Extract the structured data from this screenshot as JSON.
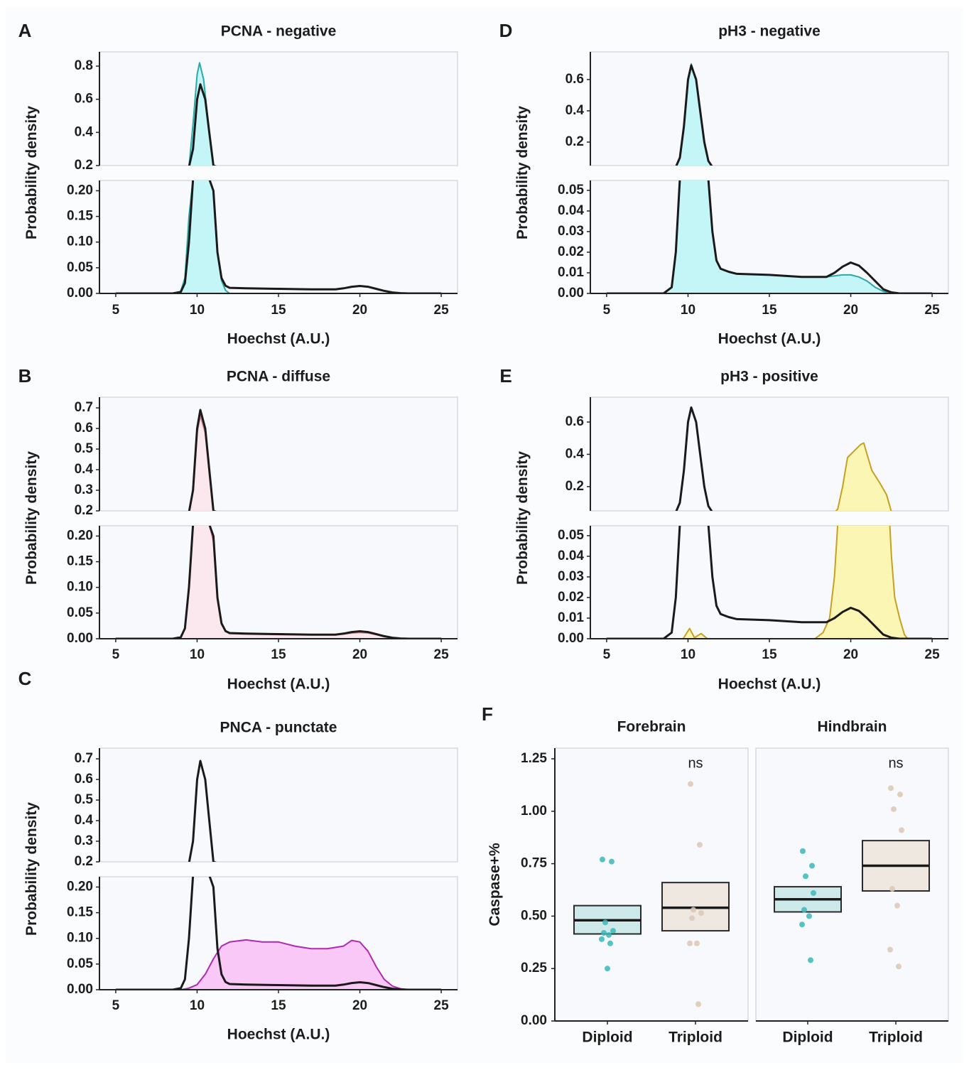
{
  "chart_data": [
    {
      "panel_label": "A",
      "type": "area",
      "title": "PCNA - negative",
      "xlabel": "Hoechst (A.U.)",
      "ylabel": "Probability density",
      "xlim": [
        4,
        26
      ],
      "x_ticks": [
        5,
        10,
        15,
        20,
        25
      ],
      "ylim_upper": [
        0.2,
        0.886
      ],
      "y_ticks_upper": [
        "0.2",
        "0.4",
        "0.6",
        "0.8"
      ],
      "ylim_lower": [
        0,
        0.22
      ],
      "y_ticks_lower": [
        "0.00",
        "0.05",
        "0.10",
        "0.15",
        "0.20"
      ],
      "series": [
        {
          "color": "#2aa9a9",
          "fill": "#c4f6f8",
          "x": [
            5,
            8.75,
            9,
            9.25,
            9.5,
            9.75,
            10,
            10.15,
            10.4,
            10.75,
            11,
            11.25,
            11.5,
            11.75,
            12,
            25
          ],
          "y": [
            0,
            0,
            0.005,
            0.03,
            0.15,
            0.45,
            0.75,
            0.82,
            0.72,
            0.4,
            0.2,
            0.08,
            0.025,
            0.006,
            0,
            0
          ]
        },
        {
          "color": "#1a1a1a",
          "fill": "none",
          "x": [
            5,
            8.5,
            9,
            9.25,
            9.5,
            9.75,
            10,
            10.2,
            10.5,
            10.75,
            11,
            11.25,
            11.5,
            11.75,
            12,
            13,
            15,
            17,
            18.5,
            19,
            19.5,
            20,
            20.5,
            21,
            21.5,
            22,
            22.5,
            23,
            25
          ],
          "y": [
            0,
            0,
            0.003,
            0.02,
            0.1,
            0.3,
            0.6,
            0.69,
            0.6,
            0.4,
            0.2,
            0.08,
            0.03,
            0.015,
            0.011,
            0.01,
            0.009,
            0.008,
            0.008,
            0.01,
            0.013,
            0.0145,
            0.013,
            0.009,
            0.005,
            0.002,
            0.0005,
            0,
            0
          ]
        }
      ]
    },
    {
      "panel_label": "B",
      "type": "area",
      "title": "PCNA - diffuse",
      "xlabel": "Hoechst (A.U.)",
      "ylabel": "Probability density",
      "xlim": [
        4,
        26
      ],
      "x_ticks": [
        5,
        10,
        15,
        20,
        25
      ],
      "ylim_upper": [
        0.2,
        0.752
      ],
      "y_ticks_upper": [
        "0.2",
        "0.3",
        "0.4",
        "0.5",
        "0.6",
        "0.7"
      ],
      "ylim_lower": [
        0,
        0.22
      ],
      "y_ticks_lower": [
        "0.00",
        "0.05",
        "0.10",
        "0.15",
        "0.20"
      ],
      "series": [
        {
          "color": "#d8808c",
          "fill": "#fbe8ee",
          "x": [
            5,
            8.5,
            9,
            9.25,
            9.5,
            9.75,
            10,
            10.2,
            10.5,
            10.75,
            11,
            11.25,
            11.5,
            11.75,
            12,
            13,
            15,
            17,
            18.5,
            19,
            19.5,
            20,
            20.5,
            21,
            21.5,
            22,
            22.5,
            23,
            25
          ],
          "y": [
            0,
            0,
            0.003,
            0.02,
            0.1,
            0.3,
            0.58,
            0.66,
            0.58,
            0.38,
            0.19,
            0.075,
            0.028,
            0.014,
            0.01,
            0.009,
            0.008,
            0.008,
            0.008,
            0.009,
            0.011,
            0.012,
            0.011,
            0.008,
            0.004,
            0.0015,
            0.0004,
            0,
            0
          ]
        },
        {
          "color": "#1a1a1a",
          "fill": "none",
          "x": [
            5,
            8.5,
            9,
            9.25,
            9.5,
            9.75,
            10,
            10.2,
            10.5,
            10.75,
            11,
            11.25,
            11.5,
            11.75,
            12,
            13,
            15,
            17,
            18.5,
            19,
            19.5,
            20,
            20.5,
            21,
            21.5,
            22,
            22.5,
            23,
            25
          ],
          "y": [
            0,
            0,
            0.003,
            0.02,
            0.1,
            0.3,
            0.6,
            0.69,
            0.6,
            0.4,
            0.2,
            0.08,
            0.03,
            0.015,
            0.011,
            0.01,
            0.009,
            0.008,
            0.008,
            0.01,
            0.013,
            0.0145,
            0.013,
            0.009,
            0.005,
            0.002,
            0.0005,
            0,
            0
          ]
        }
      ]
    },
    {
      "panel_label": "C",
      "type": "area",
      "title": "PNCA - punctate",
      "xlabel": "Hoechst (A.U.)",
      "ylabel": "Probability density",
      "xlim": [
        4,
        26
      ],
      "x_ticks": [
        5,
        10,
        15,
        20,
        25
      ],
      "ylim_upper": [
        0.2,
        0.752
      ],
      "y_ticks_upper": [
        "0.2",
        "0.3",
        "0.4",
        "0.5",
        "0.6",
        "0.7"
      ],
      "ylim_lower": [
        0,
        0.22
      ],
      "y_ticks_lower": [
        "0.00",
        "0.05",
        "0.10",
        "0.15",
        "0.20"
      ],
      "series": [
        {
          "color": "#b02ab0",
          "fill": "#f9c8f6",
          "x": [
            5,
            9,
            9.5,
            10,
            10.5,
            11,
            11.5,
            12,
            13,
            14,
            15,
            16,
            17,
            18,
            19,
            19.5,
            20,
            20.5,
            21,
            21.5,
            22,
            22.5,
            23,
            25
          ],
          "y": [
            0,
            0,
            0.003,
            0.01,
            0.03,
            0.06,
            0.085,
            0.093,
            0.097,
            0.093,
            0.093,
            0.085,
            0.08,
            0.08,
            0.085,
            0.096,
            0.093,
            0.075,
            0.045,
            0.02,
            0.007,
            0.002,
            0,
            0
          ]
        },
        {
          "color": "#1a1a1a",
          "fill": "none",
          "x": [
            5,
            8.5,
            9,
            9.25,
            9.5,
            9.75,
            10,
            10.2,
            10.5,
            10.75,
            11,
            11.25,
            11.5,
            11.75,
            12,
            13,
            15,
            17,
            18.5,
            19,
            19.5,
            20,
            20.5,
            21,
            21.5,
            22,
            22.5,
            23,
            25
          ],
          "y": [
            0,
            0,
            0.003,
            0.02,
            0.1,
            0.3,
            0.6,
            0.69,
            0.6,
            0.4,
            0.2,
            0.08,
            0.03,
            0.015,
            0.011,
            0.01,
            0.009,
            0.008,
            0.008,
            0.01,
            0.013,
            0.0145,
            0.013,
            0.009,
            0.005,
            0.002,
            0.0005,
            0,
            0
          ]
        }
      ]
    },
    {
      "panel_label": "D",
      "type": "area",
      "title": "pH3 - negative",
      "xlabel": "Hoechst (A.U.)",
      "ylabel": "Probability density",
      "xlim": [
        4,
        26
      ],
      "x_ticks": [
        5,
        10,
        15,
        20,
        25
      ],
      "ylim_upper": [
        0.05,
        0.777
      ],
      "y_ticks_upper": [
        "0.2",
        "0.4",
        "0.6"
      ],
      "ylim_lower": [
        0,
        0.0548
      ],
      "y_ticks_lower": [
        "0.00",
        "0.01",
        "0.02",
        "0.03",
        "0.04",
        "0.05"
      ],
      "series": [
        {
          "color": "#2aa9a9",
          "fill": "#c4f6f8",
          "x": [
            5,
            8.5,
            9,
            9.25,
            9.5,
            9.75,
            10,
            10.2,
            10.5,
            10.75,
            11,
            11.25,
            11.5,
            11.75,
            12,
            12.5,
            13,
            15,
            17,
            18.5,
            19,
            19.5,
            20,
            20.5,
            21,
            21.5,
            22,
            22.5,
            25
          ],
          "y": [
            0,
            0,
            0.003,
            0.02,
            0.1,
            0.3,
            0.6,
            0.7,
            0.6,
            0.4,
            0.2,
            0.08,
            0.03,
            0.016,
            0.012,
            0.0105,
            0.0095,
            0.009,
            0.008,
            0.008,
            0.0085,
            0.009,
            0.009,
            0.008,
            0.006,
            0.003,
            0.001,
            0,
            0
          ]
        },
        {
          "color": "#1a1a1a",
          "fill": "none",
          "x": [
            5,
            8.5,
            9,
            9.25,
            9.5,
            9.75,
            10,
            10.2,
            10.5,
            10.75,
            11,
            11.25,
            11.5,
            11.75,
            12,
            12.5,
            13,
            15,
            17,
            18.5,
            19,
            19.5,
            20,
            20.5,
            21,
            21.5,
            22,
            22.5,
            23,
            25
          ],
          "y": [
            0,
            0,
            0.003,
            0.02,
            0.1,
            0.3,
            0.6,
            0.69,
            0.6,
            0.4,
            0.2,
            0.08,
            0.03,
            0.016,
            0.012,
            0.0105,
            0.0095,
            0.009,
            0.008,
            0.008,
            0.01,
            0.013,
            0.015,
            0.0135,
            0.01,
            0.006,
            0.002,
            0.0005,
            0,
            0
          ]
        }
      ]
    },
    {
      "panel_label": "E",
      "type": "area",
      "title": "pH3 - positive",
      "xlabel": "Hoechst (A.U.)",
      "ylabel": "Probability density",
      "xlim": [
        4,
        26
      ],
      "x_ticks": [
        5,
        10,
        15,
        20,
        25
      ],
      "ylim_upper": [
        0.05,
        0.754
      ],
      "y_ticks_upper": [
        "0.2",
        "0.4",
        "0.6"
      ],
      "ylim_lower": [
        0,
        0.0548
      ],
      "y_ticks_lower": [
        "0.00",
        "0.01",
        "0.02",
        "0.03",
        "0.04",
        "0.05"
      ],
      "series": [
        {
          "color": "#c8a020",
          "fill": "#fbf6b4",
          "x": [
            5,
            9.7,
            10.1,
            10.4,
            10.8,
            11.2,
            17.8,
            18.3,
            18.7,
            19,
            19.2,
            19.5,
            19.8,
            20.2,
            20.6,
            20.8,
            21,
            21.3,
            21.8,
            22.2,
            22.4,
            22.5,
            22.7,
            23,
            23.3,
            23.5,
            25
          ],
          "y": [
            0,
            0,
            0.005,
            0.0005,
            0.0025,
            0,
            0,
            0.003,
            0.01,
            0.03,
            0.06,
            0.2,
            0.38,
            0.42,
            0.46,
            0.47,
            0.4,
            0.3,
            0.22,
            0.15,
            0.08,
            0.04,
            0.02,
            0.01,
            0.002,
            0,
            0
          ]
        },
        {
          "color": "#1a1a1a",
          "fill": "none",
          "x": [
            5,
            8.5,
            9,
            9.25,
            9.5,
            9.75,
            10,
            10.2,
            10.5,
            10.75,
            11,
            11.25,
            11.5,
            11.75,
            12,
            12.5,
            13,
            15,
            17,
            18.5,
            19,
            19.5,
            20,
            20.5,
            21,
            21.5,
            22,
            22.5,
            23,
            25
          ],
          "y": [
            0,
            0,
            0.003,
            0.02,
            0.1,
            0.3,
            0.6,
            0.69,
            0.6,
            0.4,
            0.2,
            0.08,
            0.03,
            0.016,
            0.012,
            0.0105,
            0.0095,
            0.009,
            0.008,
            0.008,
            0.01,
            0.013,
            0.015,
            0.0135,
            0.01,
            0.006,
            0.002,
            0.0005,
            0,
            0
          ]
        }
      ]
    },
    {
      "panel_label": "F",
      "type": "scatter",
      "ylabel": "Caspase+%",
      "ylim": [
        0,
        1.25
      ],
      "y_ticks": [
        "0.00",
        "0.25",
        "0.50",
        "0.75",
        "1.00",
        "1.25"
      ],
      "facets": [
        {
          "title": "Forebrain",
          "annotation": "ns",
          "groups": [
            {
              "label": "Diploid",
              "color": "#3bb8b8",
              "fill": "#cde9ea",
              "box": [
                0.415,
                0.48,
                0.55
              ],
              "points": [
                0.77,
                0.76,
                0.47,
                0.43,
                0.42,
                0.41,
                0.39,
                0.37,
                0.25
              ]
            },
            {
              "label": "Triploid",
              "color": "#dcc7b4",
              "fill": "#efe8e1",
              "box": [
                0.43,
                0.54,
                0.66
              ],
              "points": [
                1.13,
                0.84,
                0.53,
                0.515,
                0.49,
                0.37,
                0.37,
                0.08
              ]
            }
          ]
        },
        {
          "title": "Hindbrain",
          "annotation": "ns",
          "groups": [
            {
              "label": "Diploid",
              "color": "#3bb8b8",
              "fill": "#cde9ea",
              "box": [
                0.52,
                0.58,
                0.64
              ],
              "points": [
                0.81,
                0.74,
                0.69,
                0.61,
                0.53,
                0.5,
                0.46,
                0.29
              ]
            },
            {
              "label": "Triploid",
              "color": "#dcc7b4",
              "fill": "#efe8e1",
              "box": [
                0.62,
                0.74,
                0.86
              ],
              "points": [
                1.11,
                1.08,
                1.01,
                0.91,
                0.63,
                0.55,
                0.34,
                0.26
              ]
            }
          ]
        }
      ]
    }
  ]
}
